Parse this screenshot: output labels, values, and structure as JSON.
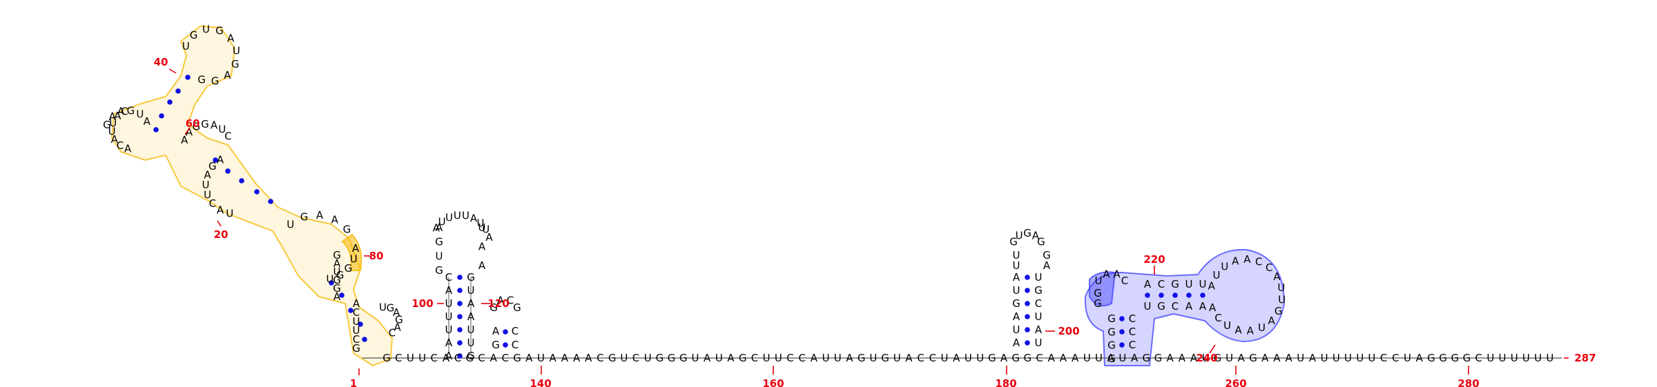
{
  "diagram": {
    "sequence_length_label": "287",
    "colors": {
      "pair_dot": "#1010e8",
      "number": "#e8000d",
      "highlight_yellow": "#f5b800",
      "highlight_blue": "#4040ff",
      "backbone": "#555555"
    },
    "index_labels": [
      "1",
      "20",
      "40",
      "60",
      "80",
      "100",
      "120",
      "140",
      "160",
      "180",
      "200",
      "220",
      "240",
      "260",
      "280"
    ],
    "baseline_sequence": "GCUUCACGCACGAUAAAACGUCUGGGUAUAGCUUCCAUUAGUGUACCUAUUGAGGCAAAUUAUAGGAAAUGUAGAAAUAUUUUUCCUAGGGGCUUUUUU",
    "hairpin_left_loop": "AUUUUAUUA",
    "hairpin_small_loop": "GACG",
    "hairpin_middle_loop": "GUGAG",
    "blue_domain_loop": "AUUAACCAUUGAUAAUCA"
  }
}
